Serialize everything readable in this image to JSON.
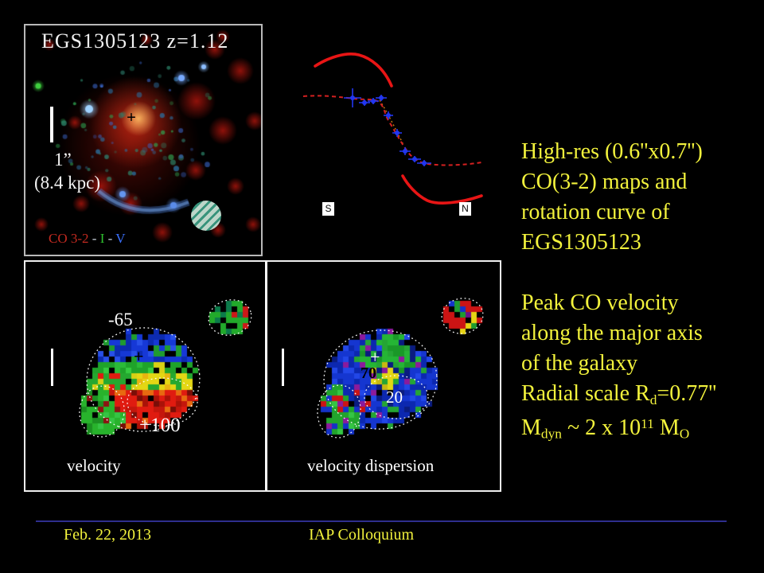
{
  "colors": {
    "background": "#000000",
    "accent_yellow": "#f2f23c",
    "footer_line_blue": "#2e2e8e",
    "co_label_red": "#c32a20",
    "i_label_green": "#2fc22f",
    "v_label_blue": "#3a70ff",
    "map_blue": "#1536d0",
    "map_green": "#25b535",
    "map_yellow": "#e3d714",
    "map_red": "#e01b10",
    "curve_red": "#e81818",
    "data_point_blue": "#2236f0"
  },
  "galaxy_panel": {
    "title": "EGS1305123 z=1.12",
    "scale_bar_label": "1”",
    "scale_bar_sublabel": "(8.4 kpc)",
    "center_marker": "+",
    "caption_co": "CO 3-2",
    "caption_sep1": " - ",
    "caption_i": "I",
    "caption_sep2": " - ",
    "caption_v": "V"
  },
  "rotation_curve": {
    "south_label": "S",
    "north_label": "N",
    "chart_data": {
      "type": "line",
      "title": "Peak CO velocity along the major axis",
      "x_axis_endpoints": [
        "S",
        "N"
      ],
      "axes_labeled": false,
      "grid": false,
      "series": [
        {
          "name": "rotation model upper envelope",
          "style": "solid red"
        },
        {
          "name": "rotation model lower envelope",
          "style": "solid red"
        },
        {
          "name": "model fit",
          "style": "dashed red"
        },
        {
          "name": "peak CO velocity data",
          "style": "blue points with error bars",
          "points_rel_x": [
            0.19,
            0.28,
            0.34,
            0.4,
            0.45,
            0.52,
            0.58,
            0.65,
            0.72
          ],
          "points_rel_y": [
            0.72,
            0.68,
            0.69,
            0.72,
            0.6,
            0.48,
            0.36,
            0.3,
            0.27
          ]
        }
      ]
    }
  },
  "maps": {
    "velocity": {
      "title": "velocity",
      "min_value": "-65",
      "max_value": "+100",
      "center_marker": "+"
    },
    "dispersion": {
      "title": "velocity dispersion",
      "peak_value": "70",
      "outer_value": "20",
      "center_marker": "+"
    }
  },
  "right_text": {
    "para1_line1": "High-res (0.6''x0.7'')",
    "para1_line2": "CO(3-2) maps and",
    "para1_line3": "rotation curve of",
    "para1_line4": "EGS1305123",
    "para2_line1": "Peak CO velocity",
    "para2_line2": "along the major axis",
    "para2_line3": "of the galaxy",
    "rd_prefix": "Radial scale R",
    "rd_sub": "d",
    "rd_suffix": "=0.77''",
    "mdyn_m": "M",
    "mdyn_sub": "dyn",
    "mdyn_mid": " ~ 2 x 10",
    "mdyn_exp": "11",
    "mdyn_msun": " M",
    "mdyn_msun_sub": "O"
  },
  "footer": {
    "date": "Feb. 22, 2013",
    "venue": "IAP Colloquium"
  }
}
